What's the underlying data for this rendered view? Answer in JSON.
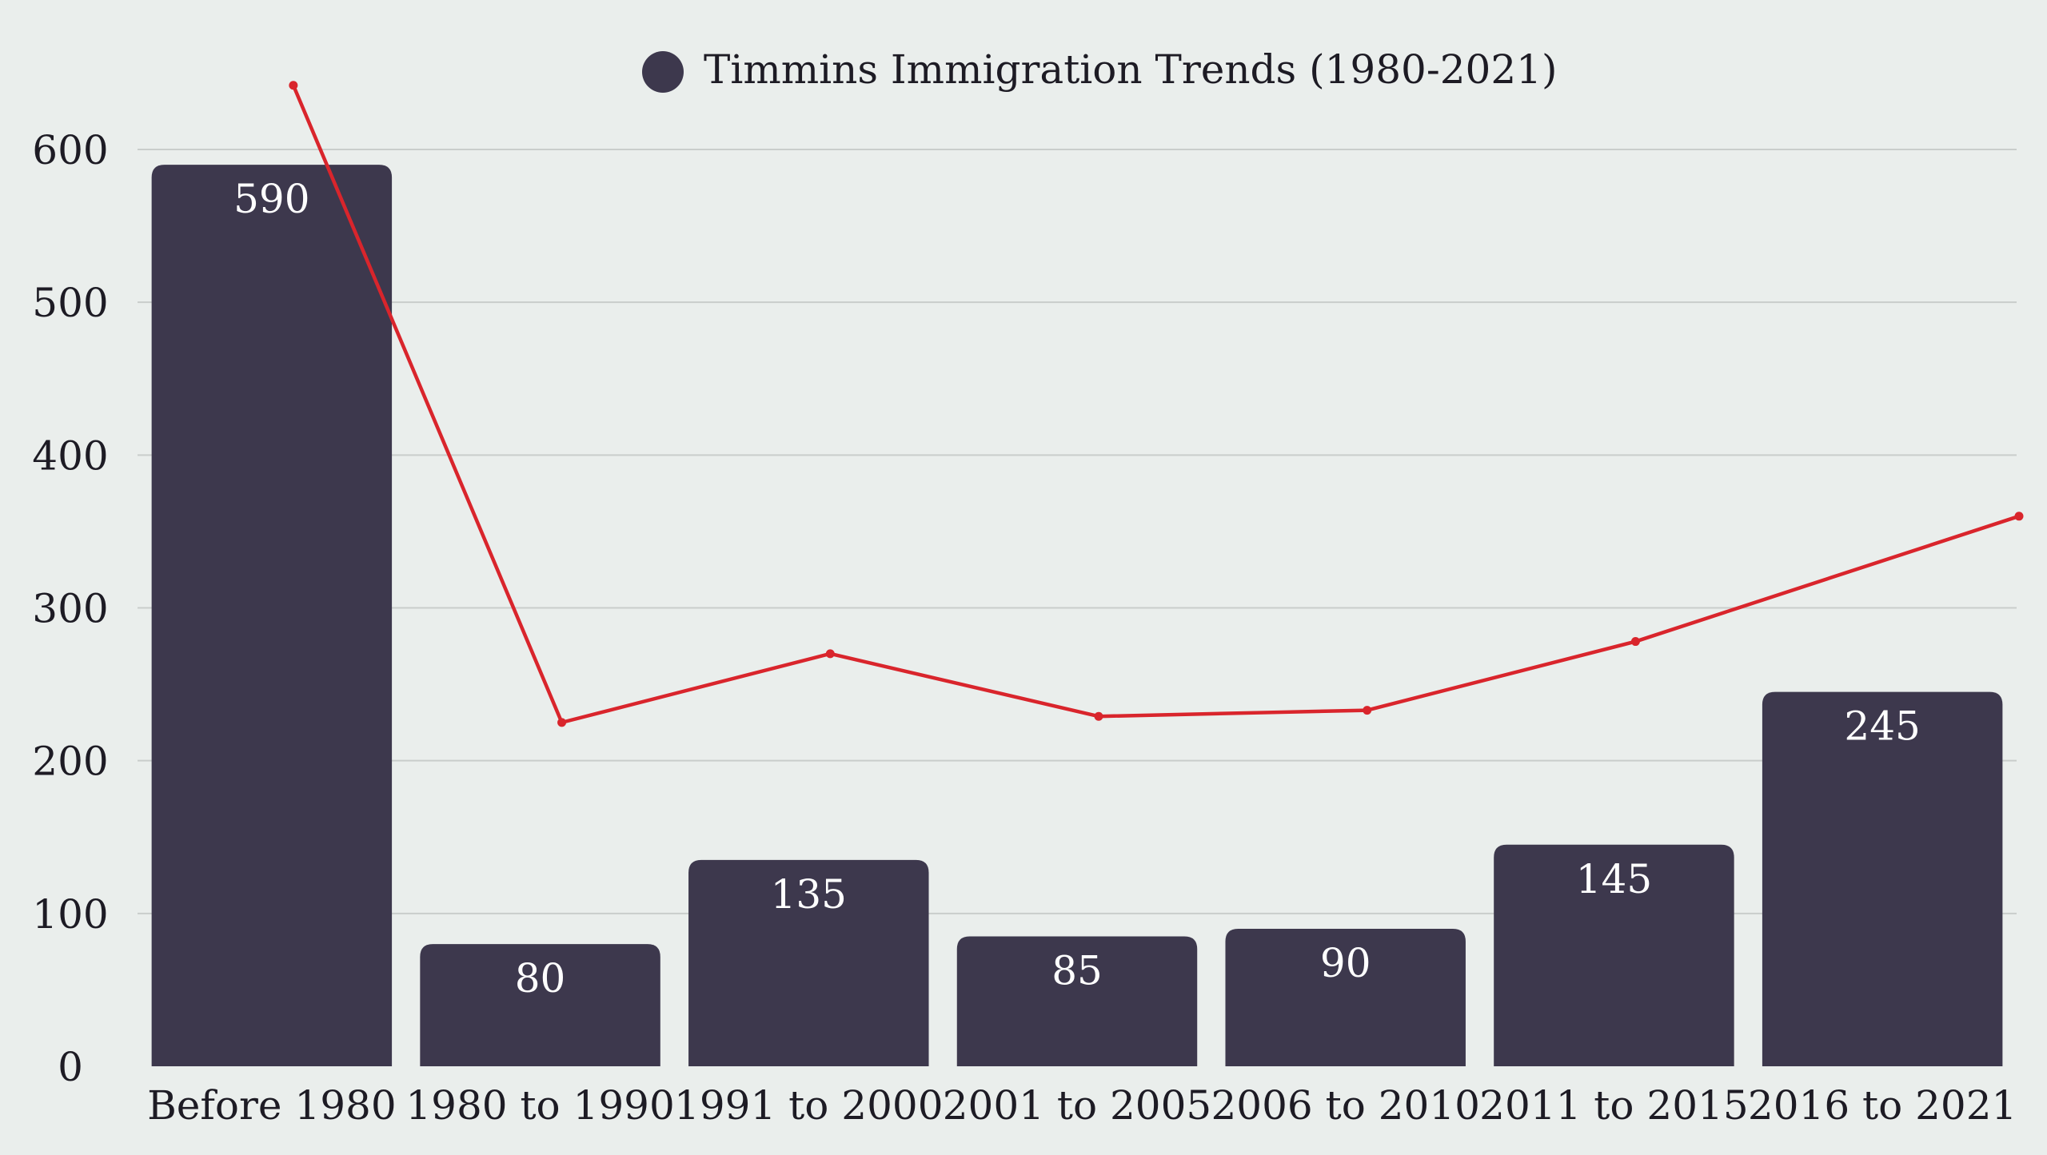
{
  "chart_data": {
    "type": "bar",
    "categories": [
      "Before 1980",
      "1980 to 1990",
      "1991 to 2000",
      "2001 to 2005",
      "2006 to 2010",
      "2011 to 2015",
      "2016 to 2021"
    ],
    "series": [
      {
        "name": "Timmins Immigration Trends (1980-2021)",
        "type": "bar",
        "values": [
          590,
          80,
          135,
          85,
          90,
          145,
          245
        ],
        "color": "#3d384d"
      },
      {
        "type": "line",
        "values": [
          642,
          225,
          270,
          229,
          233,
          278,
          360
        ],
        "color": "#d9252c"
      }
    ],
    "yticks": [
      0,
      100,
      200,
      300,
      400,
      500,
      600
    ],
    "ylim": [
      0,
      600
    ],
    "grid": true,
    "legend_position": "top-center",
    "bar_labels": true
  }
}
